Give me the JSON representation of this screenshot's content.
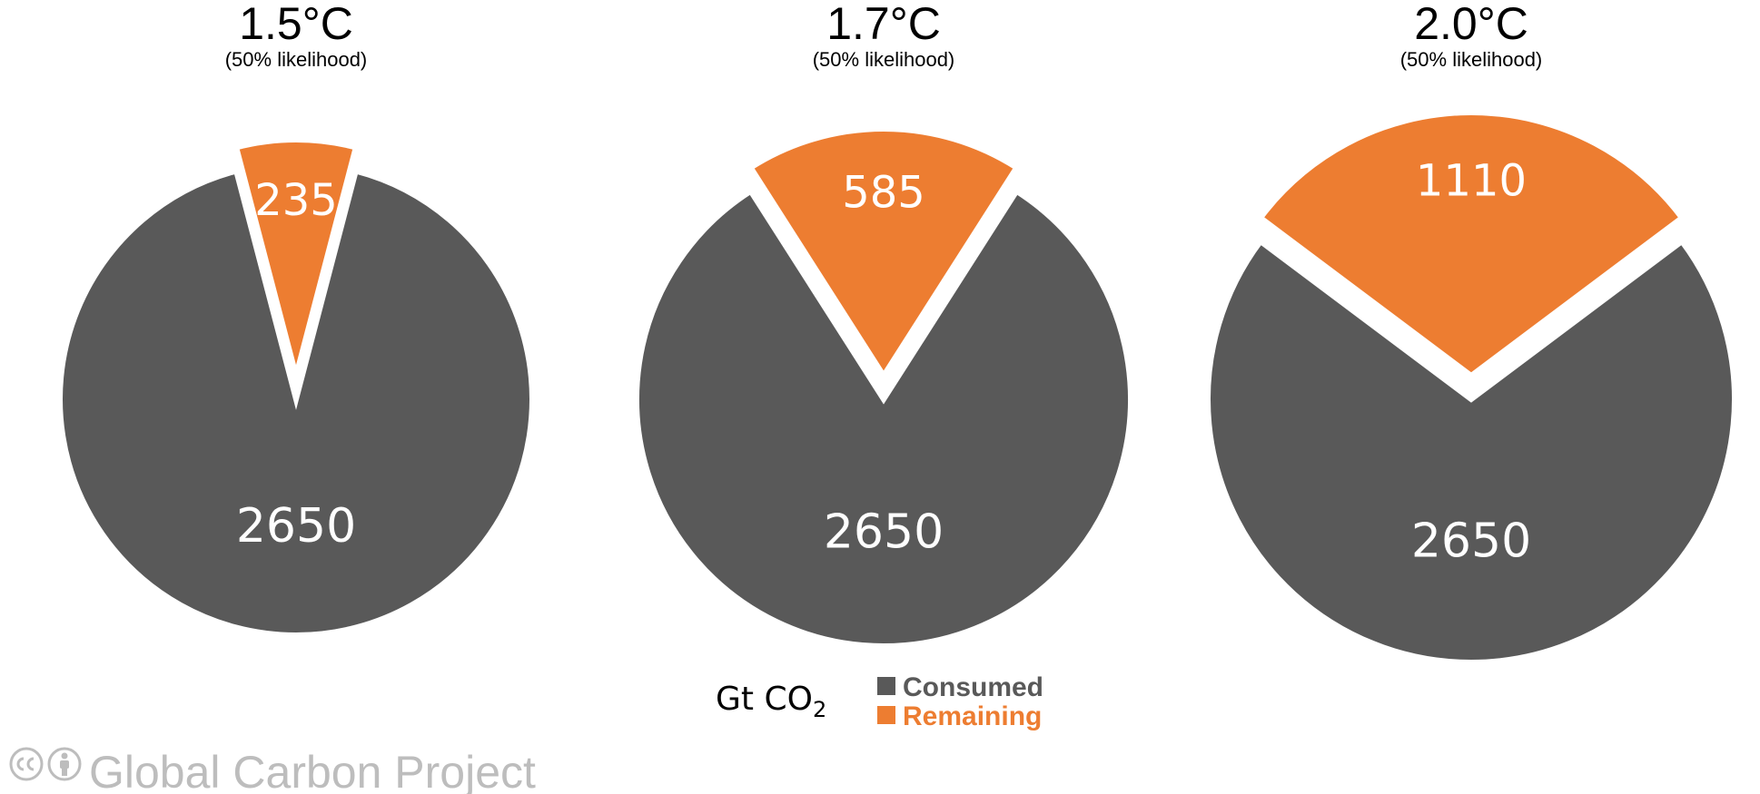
{
  "chart_data": [
    {
      "type": "pie",
      "title": "1.5°C",
      "subtitle": "(50% likelihood)",
      "slices": [
        {
          "label": "Consumed",
          "value": 2650
        },
        {
          "label": "Remaining",
          "value": 235
        }
      ]
    },
    {
      "type": "pie",
      "title": "1.7°C",
      "subtitle": "(50% likelihood)",
      "slices": [
        {
          "label": "Consumed",
          "value": 2650
        },
        {
          "label": "Remaining",
          "value": 585
        }
      ]
    },
    {
      "type": "pie",
      "title": "2.0°C",
      "subtitle": "(50% likelihood)",
      "slices": [
        {
          "label": "Consumed",
          "value": 2650
        },
        {
          "label": "Remaining",
          "value": 1110
        }
      ]
    }
  ],
  "legend": {
    "unit_main": "Gt CO",
    "unit_subscript": "2",
    "items": [
      {
        "label": "Consumed",
        "color": "#595959"
      },
      {
        "label": "Remaining",
        "color": "#ed7d31"
      }
    ]
  },
  "colors": {
    "consumed": "#595959",
    "remaining": "#ed7d31",
    "background": "#ffffff"
  },
  "watermark": {
    "text": "Global Carbon Project",
    "icons": [
      "creative-commons-icon",
      "attribution-icon"
    ]
  }
}
